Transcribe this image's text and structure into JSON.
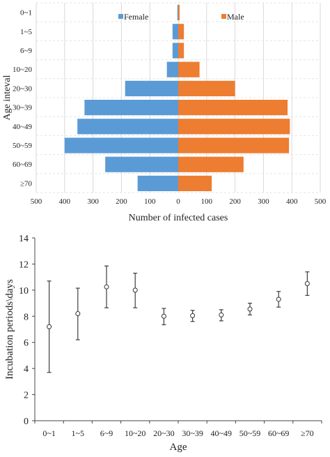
{
  "chart_data": [
    {
      "type": "bar",
      "orientation": "horizontal",
      "layout": "population-pyramid",
      "categories": [
        "0~1",
        "1~5",
        "6~9",
        "10~20",
        "20~30",
        "30~39",
        "40~49",
        "50~59",
        "60~69",
        "≥70"
      ],
      "series": [
        {
          "name": "Female",
          "color": "#5B9BD5",
          "direction": "left",
          "values": [
            3,
            20,
            20,
            40,
            187,
            330,
            355,
            400,
            257,
            143
          ]
        },
        {
          "name": "Male",
          "color": "#ED7D31",
          "direction": "right",
          "values": [
            5,
            20,
            20,
            75,
            200,
            385,
            393,
            390,
            230,
            118
          ]
        }
      ],
      "xlabel": "Number of infected cases",
      "ylabel": "Age inteval",
      "xlim": [
        -500,
        500
      ],
      "xticks": [
        {
          "value": -500,
          "label": "500"
        },
        {
          "value": -400,
          "label": "400"
        },
        {
          "value": -300,
          "label": "300"
        },
        {
          "value": -200,
          "label": "200"
        },
        {
          "value": -100,
          "label": "100"
        },
        {
          "value": 0,
          "label": "0"
        },
        {
          "value": 100,
          "label": "100"
        },
        {
          "value": 200,
          "label": "200"
        },
        {
          "value": 300,
          "label": "300"
        },
        {
          "value": 400,
          "label": "400"
        },
        {
          "value": 500,
          "label": "500"
        }
      ],
      "grid": true,
      "legend": "top-inside"
    },
    {
      "type": "scatter",
      "style": "error-bar",
      "categories": [
        "0~1",
        "1~5",
        "6~9",
        "10~20",
        "20~30",
        "30~39",
        "40~49",
        "50~59",
        "60~69",
        "≥70"
      ],
      "values": [
        7.2,
        8.2,
        10.25,
        10.0,
        8.0,
        8.05,
        8.1,
        8.55,
        9.3,
        10.5
      ],
      "lower": [
        3.7,
        6.2,
        8.65,
        8.65,
        7.35,
        7.6,
        7.65,
        8.1,
        8.7,
        9.6
      ],
      "upper": [
        10.7,
        10.15,
        11.85,
        11.3,
        8.6,
        8.45,
        8.5,
        9.0,
        9.9,
        11.4
      ],
      "xlabel": "Age",
      "ylabel": "Incubation periods\\days",
      "ylim": [
        0,
        14
      ],
      "yticks": [
        0,
        2,
        4,
        6,
        8,
        10,
        12,
        14
      ],
      "grid": false
    }
  ]
}
